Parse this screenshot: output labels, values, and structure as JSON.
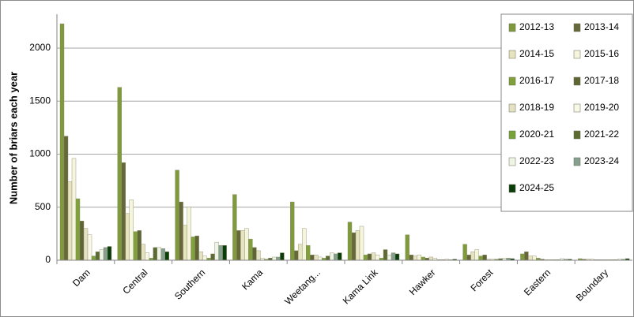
{
  "chart_data": {
    "type": "bar",
    "y_label": "Number of briars each year",
    "categories": [
      "Dam",
      "Central",
      "Southern",
      "Kama",
      "Weetang...",
      "Kama Link",
      "Hawker",
      "Forest",
      "Eastern",
      "Boundary"
    ],
    "series": [
      {
        "name": "2012-13",
        "color": "#7f9a3c",
        "values": [
          2230,
          1630,
          850,
          620,
          550,
          360,
          240,
          150,
          60,
          15
        ]
      },
      {
        "name": "2013-14",
        "color": "#67683a",
        "values": [
          1170,
          920,
          550,
          280,
          90,
          260,
          50,
          50,
          80,
          10
        ]
      },
      {
        "name": "2014-15",
        "color": "#e6e3bf",
        "values": [
          740,
          440,
          330,
          280,
          150,
          280,
          40,
          80,
          40,
          10
        ]
      },
      {
        "name": "2015-16",
        "color": "#f5f4dc",
        "values": [
          960,
          570,
          500,
          300,
          300,
          320,
          50,
          100,
          40,
          10
        ]
      },
      {
        "name": "2016-17",
        "color": "#7fa03a",
        "values": [
          580,
          270,
          220,
          200,
          140,
          50,
          30,
          40,
          20,
          5
        ]
      },
      {
        "name": "2017-18",
        "color": "#5f6535",
        "values": [
          370,
          280,
          230,
          120,
          50,
          60,
          20,
          50,
          10,
          5
        ]
      },
      {
        "name": "2018-19",
        "color": "#e4e2c2",
        "values": [
          300,
          150,
          80,
          90,
          50,
          70,
          30,
          10,
          5,
          5
        ]
      },
      {
        "name": "2019-20",
        "color": "#f8f8e6",
        "values": [
          240,
          70,
          40,
          20,
          30,
          50,
          20,
          10,
          5,
          5
        ]
      },
      {
        "name": "2020-21",
        "color": "#78a23a",
        "values": [
          40,
          20,
          20,
          10,
          20,
          20,
          5,
          10,
          5,
          5
        ]
      },
      {
        "name": "2021-22",
        "color": "#5c6a33",
        "values": [
          80,
          120,
          60,
          20,
          40,
          100,
          5,
          15,
          5,
          5
        ]
      },
      {
        "name": "2022-23",
        "color": "#eef5e6",
        "values": [
          100,
          120,
          170,
          30,
          70,
          50,
          10,
          20,
          15,
          10
        ]
      },
      {
        "name": "2023-24",
        "color": "#86a090",
        "values": [
          120,
          110,
          140,
          30,
          60,
          70,
          5,
          20,
          10,
          10
        ]
      },
      {
        "name": "2024-25",
        "color": "#0b3d0b",
        "values": [
          130,
          80,
          140,
          70,
          70,
          60,
          10,
          15,
          10,
          15
        ]
      }
    ],
    "ylim": [
      0,
      2320
    ],
    "yticks": [
      0,
      500,
      1000,
      1500,
      2000
    ],
    "grid": true,
    "legend": "top-right"
  }
}
